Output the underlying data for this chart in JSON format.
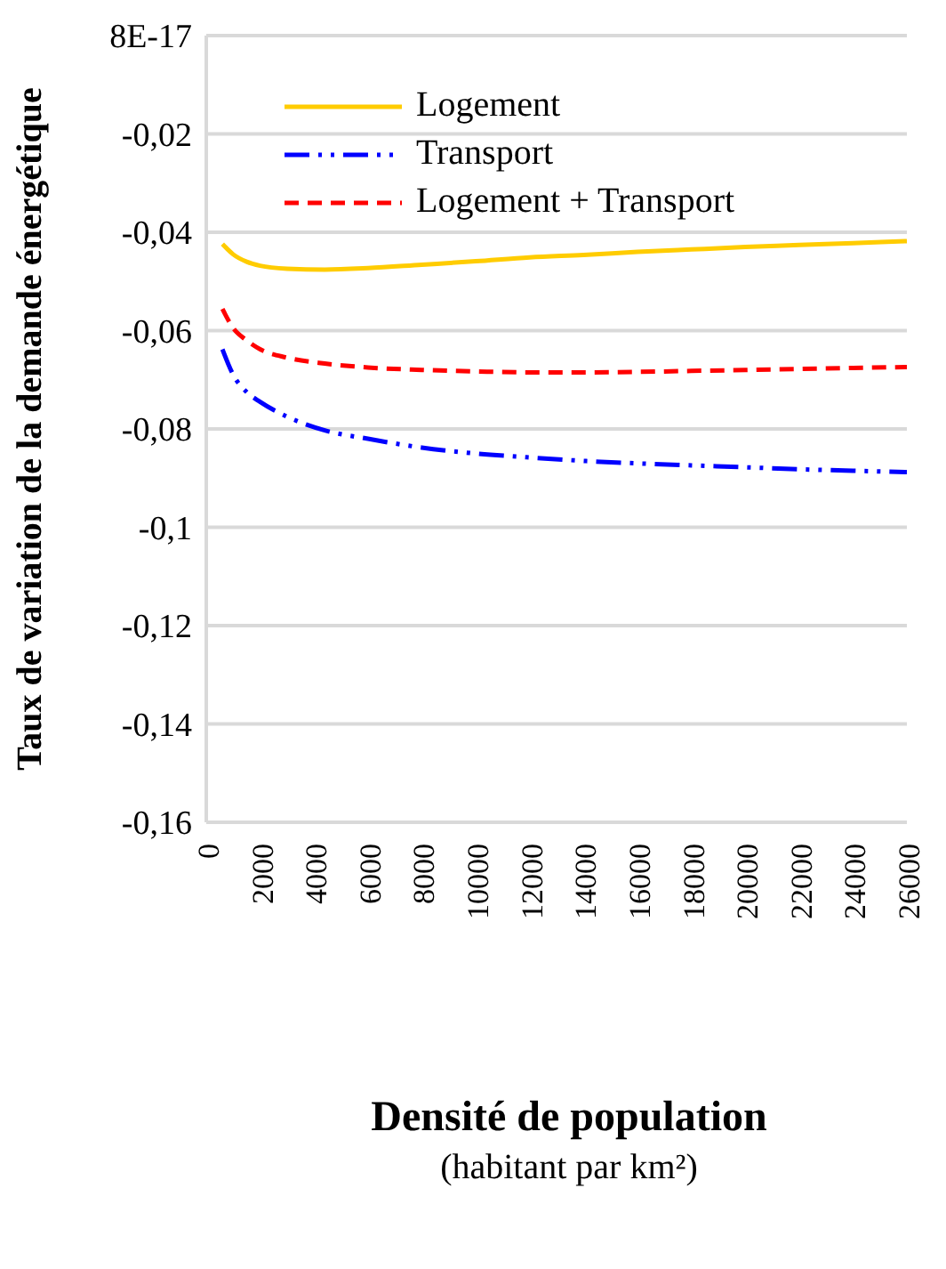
{
  "chart_data": {
    "type": "line",
    "xlabel": "Densité de population\n(habitant par km²)",
    "ylabel": "Taux de variation de la demande énergétique",
    "xlim": [
      0,
      26000
    ],
    "xticks": [
      0,
      2000,
      4000,
      6000,
      8000,
      10000,
      12000,
      14000,
      16000,
      18000,
      20000,
      22000,
      24000,
      26000
    ],
    "ylim": [
      -0.16,
      8e-17
    ],
    "yticks": [
      {
        "value": 8e-17,
        "label": "8E-17"
      },
      {
        "value": -0.02,
        "label": "-0,02"
      },
      {
        "value": -0.04,
        "label": "-0,04"
      },
      {
        "value": -0.06,
        "label": "-0,06"
      },
      {
        "value": -0.08,
        "label": "-0,08"
      },
      {
        "value": -0.1,
        "label": "-0,1"
      },
      {
        "value": -0.12,
        "label": "-0,12"
      },
      {
        "value": -0.14,
        "label": "-0,14"
      },
      {
        "value": -0.16,
        "label": "-0,16"
      }
    ],
    "grid": "y",
    "legend": "top left",
    "marker": "none",
    "x": [
      600,
      1000,
      1500,
      2000,
      3000,
      4400,
      6000,
      8000,
      10000,
      12000,
      14000,
      16000,
      18000,
      20000,
      22000,
      24000,
      26000
    ],
    "series": [
      {
        "name": "Logement",
        "color": "#ffcc00",
        "line_style": "solid",
        "values": [
          -0.0424,
          -0.0445,
          -0.046,
          -0.0468,
          -0.0474,
          -0.0476,
          -0.0473,
          -0.0466,
          -0.0459,
          -0.0451,
          -0.0446,
          -0.044,
          -0.0435,
          -0.043,
          -0.0426,
          -0.0422,
          -0.0418
        ]
      },
      {
        "name": "Transport",
        "color": "#0000ff",
        "line_style": "dashdot",
        "values": [
          -0.0638,
          -0.069,
          -0.0725,
          -0.0745,
          -0.0775,
          -0.0803,
          -0.082,
          -0.0838,
          -0.085,
          -0.0858,
          -0.0865,
          -0.087,
          -0.0874,
          -0.0878,
          -0.0882,
          -0.0885,
          -0.0888
        ]
      },
      {
        "name": "Logement + Transport",
        "color": "#ff0000",
        "line_style": "dashed",
        "values": [
          -0.0556,
          -0.0595,
          -0.062,
          -0.0638,
          -0.0655,
          -0.0667,
          -0.0675,
          -0.068,
          -0.0683,
          -0.0685,
          -0.0685,
          -0.0684,
          -0.0682,
          -0.068,
          -0.0678,
          -0.0676,
          -0.0674
        ]
      }
    ]
  }
}
